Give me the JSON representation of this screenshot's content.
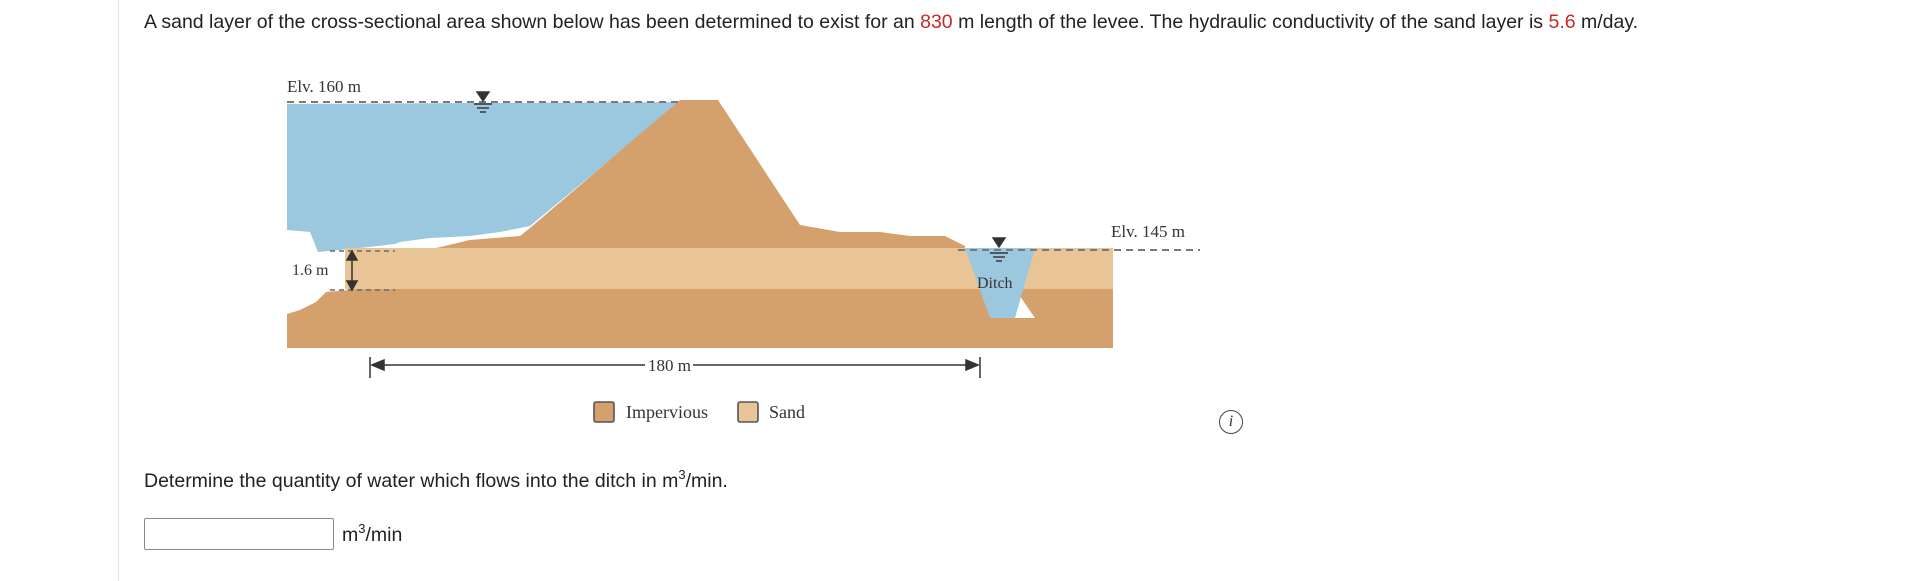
{
  "problem": {
    "part1": "A sand layer of the cross-sectional area shown below has been determined to exist for an ",
    "length_value": "830",
    "part2": " m length of the levee. The hydraulic conductivity of the sand layer is ",
    "k_value": "5.6",
    "part3": " m/day."
  },
  "figure": {
    "elev_left": "Elv. 160 m",
    "elev_right": "Elv. 145 m",
    "thickness_label": "1.6 m",
    "distance_label": "180 m",
    "ditch_label": "Ditch",
    "legend": {
      "impervious": "Impervious",
      "sand": "Sand"
    }
  },
  "question": {
    "text": "Determine the quantity of water which flows into the ditch in m",
    "sup": "3",
    "suffix": "/min."
  },
  "answer": {
    "value": "",
    "unit": "m",
    "unit_sup": "3",
    "unit_suffix": "/min"
  },
  "colors": {
    "water": "#9cc8df",
    "impervious": "#d4a06c",
    "sand": "#e8c497",
    "accent_red": "#c82828"
  },
  "icons": {
    "info": "info-circle-icon"
  }
}
